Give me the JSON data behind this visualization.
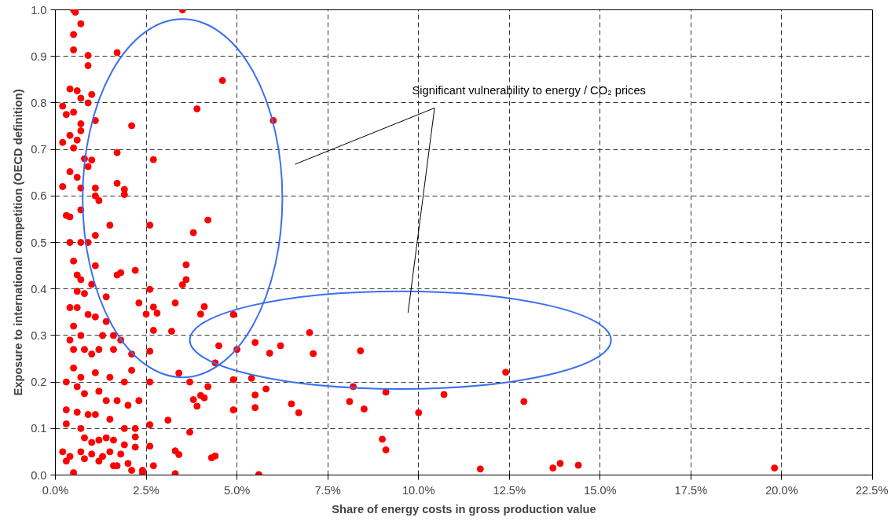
{
  "chart_data": {
    "type": "scatter",
    "xlabel": "Share of energy costs in gross production value",
    "ylabel": "Exposure to international competition (OECD definition)",
    "annotations": [
      "Significant vulnerability to energy / CO₂ prices"
    ],
    "marker": "circle",
    "grid": true,
    "xlim": [
      0,
      22.5
    ],
    "ylim": [
      0,
      1
    ],
    "xticks": [
      {
        "value": 0,
        "label": "0.0%"
      },
      {
        "value": 2.5,
        "label": "2.5%"
      },
      {
        "value": 5,
        "label": "5.0%"
      },
      {
        "value": 7.5,
        "label": "7.5%"
      },
      {
        "value": 10,
        "label": "10.0%"
      },
      {
        "value": 12.5,
        "label": "12.5%"
      },
      {
        "value": 15,
        "label": "15.0%"
      },
      {
        "value": 17.5,
        "label": "17.5%"
      },
      {
        "value": 20,
        "label": "20.0%"
      },
      {
        "value": 22.5,
        "label": "22.5%"
      }
    ],
    "yticks": [
      {
        "value": 0,
        "label": "0.0"
      },
      {
        "value": 0.1,
        "label": "0.1"
      },
      {
        "value": 0.2,
        "label": "0.2"
      },
      {
        "value": 0.3,
        "label": "0.3"
      },
      {
        "value": 0.4,
        "label": "0.4"
      },
      {
        "value": 0.5,
        "label": "0.5"
      },
      {
        "value": 0.6,
        "label": "0.6"
      },
      {
        "value": 0.7,
        "label": "0.7"
      },
      {
        "value": 0.8,
        "label": "0.8"
      },
      {
        "value": 0.9,
        "label": "0.9"
      },
      {
        "value": 1.0,
        "label": "1.0"
      }
    ],
    "series": [
      {
        "color": "#ff0000",
        "x": [
          3.5,
          4.6,
          3.9,
          6.0,
          2.7,
          2.1,
          1.7,
          4.2,
          3.8,
          2.6,
          1.5,
          3.6,
          3.6,
          3.5,
          2.6,
          2.7,
          2.8,
          2.3,
          2.5,
          3.3,
          4.0,
          4.1,
          4.9,
          3.2,
          2.7,
          2.6,
          4.5,
          5.5,
          5.0,
          6.2,
          5.9,
          7.0,
          7.1,
          8.4,
          4.4,
          12.4,
          12.9,
          5.4,
          4.9,
          4.2,
          3.7,
          4.0,
          5.5,
          5.8,
          8.2,
          9.1,
          10.7,
          3.8,
          3.9,
          4.1,
          5.5,
          4.9,
          6.5,
          6.7,
          8.1,
          8.5,
          10.0,
          3.4,
          2.6,
          3.1,
          3.7,
          2.6,
          3.3,
          3.4,
          2.6,
          4.3,
          4.4,
          2.2,
          2.7,
          9.0,
          9.1,
          5.6,
          11.7,
          13.7,
          13.9,
          14.4,
          19.8,
          2.4,
          2.1,
          3.3,
          0.5,
          0.55,
          0.7,
          0.5,
          0.9,
          0.5,
          0.9,
          0.4,
          0.6,
          0.7,
          0.9,
          1.0,
          0.2,
          0.3,
          0.5,
          1.1,
          0.7,
          0.4,
          0.6,
          0.7,
          0.2,
          0.5,
          0.8,
          0.9,
          1.0,
          0.6,
          0.4,
          0.7,
          1.1,
          1.1,
          0.2,
          1.2,
          0.3,
          0.4,
          0.7,
          1.9,
          1.9,
          1.7,
          1.7,
          0.4,
          0.7,
          0.9,
          1.1,
          0.5,
          0.6,
          0.7,
          1.1,
          0.6,
          0.8,
          1.0,
          1.4,
          1.8,
          2.2,
          1.7,
          0.4,
          0.6,
          0.9,
          1.1,
          1.4,
          1.6,
          1.8,
          0.5,
          0.7,
          1.3,
          0.4,
          0.5,
          0.8,
          1.0,
          1.2,
          1.6,
          2.1,
          0.5,
          0.7,
          1.1,
          1.5,
          1.9,
          2.1,
          0.3,
          0.6,
          0.8,
          1.2,
          1.4,
          1.7,
          2.0,
          2.3,
          0.3,
          0.6,
          0.9,
          1.1,
          1.5,
          1.9,
          2.2,
          0.3,
          0.7,
          0.8,
          1.0,
          1.2,
          1.4,
          1.6,
          1.9,
          2.2,
          0.2,
          0.4,
          0.7,
          1.0,
          1.3,
          1.5,
          1.8,
          2.0,
          2.4,
          0.3,
          0.8,
          1.2,
          1.6,
          0.5,
          1.7
        ],
        "values": [
          1.0,
          0.848,
          0.787,
          0.762,
          0.678,
          0.751,
          0.908,
          0.548,
          0.521,
          0.537,
          0.537,
          0.452,
          0.42,
          0.409,
          0.399,
          0.361,
          0.348,
          0.37,
          0.346,
          0.37,
          0.346,
          0.362,
          0.345,
          0.309,
          0.311,
          0.266,
          0.278,
          0.285,
          0.27,
          0.278,
          0.262,
          0.306,
          0.261,
          0.267,
          0.241,
          0.221,
          0.158,
          0.208,
          0.205,
          0.19,
          0.2,
          0.171,
          0.172,
          0.185,
          0.19,
          0.178,
          0.173,
          0.162,
          0.148,
          0.166,
          0.145,
          0.14,
          0.153,
          0.134,
          0.158,
          0.142,
          0.134,
          0.219,
          0.2,
          0.118,
          0.092,
          0.108,
          0.052,
          0.044,
          0.062,
          0.037,
          0.041,
          0.082,
          0.02,
          0.077,
          0.054,
          0.001,
          0.013,
          0.015,
          0.025,
          0.021,
          0.015,
          0.005,
          0.01,
          0.003,
          1.0,
          0.995,
          0.97,
          0.947,
          0.902,
          0.914,
          0.88,
          0.83,
          0.826,
          0.81,
          0.8,
          0.818,
          0.793,
          0.775,
          0.78,
          0.762,
          0.755,
          0.73,
          0.72,
          0.74,
          0.715,
          0.703,
          0.68,
          0.663,
          0.677,
          0.64,
          0.652,
          0.617,
          0.617,
          0.6,
          0.62,
          0.59,
          0.558,
          0.555,
          0.57,
          0.614,
          0.603,
          0.627,
          0.693,
          0.5,
          0.5,
          0.5,
          0.515,
          0.46,
          0.43,
          0.42,
          0.45,
          0.395,
          0.39,
          0.41,
          0.383,
          0.435,
          0.44,
          0.43,
          0.36,
          0.36,
          0.345,
          0.34,
          0.33,
          0.3,
          0.29,
          0.32,
          0.3,
          0.3,
          0.29,
          0.27,
          0.27,
          0.26,
          0.27,
          0.27,
          0.26,
          0.23,
          0.21,
          0.22,
          0.21,
          0.2,
          0.225,
          0.2,
          0.19,
          0.175,
          0.18,
          0.16,
          0.16,
          0.15,
          0.16,
          0.14,
          0.135,
          0.13,
          0.13,
          0.12,
          0.1,
          0.1,
          0.11,
          0.1,
          0.08,
          0.07,
          0.075,
          0.08,
          0.075,
          0.065,
          0.06,
          0.05,
          0.04,
          0.05,
          0.045,
          0.04,
          0.05,
          0.045,
          0.025,
          0.01,
          0.03,
          0.035,
          0.03,
          0.02,
          0.005,
          0.02
        ]
      }
    ]
  }
}
